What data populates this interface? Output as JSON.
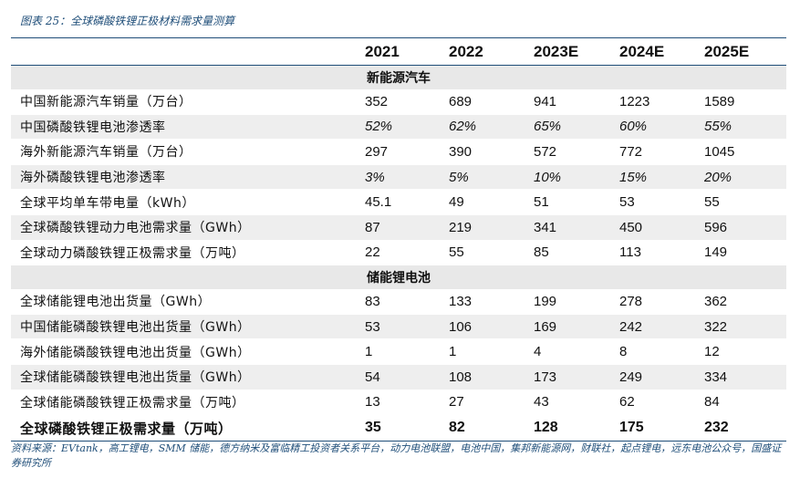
{
  "figure_title": "图表 25：全球磷酸铁锂正极材料需求量测算",
  "columns": [
    "",
    "2021",
    "2022",
    "2023E",
    "2024E",
    "2025E"
  ],
  "sections": [
    {
      "title": "新能源汽车",
      "rows": [
        {
          "label": "中国新能源汽车销量（万台）",
          "values": [
            "352",
            "689",
            "941",
            "1223",
            "1589"
          ],
          "italic": false
        },
        {
          "label": "中国磷酸铁锂电池渗透率",
          "values": [
            "52%",
            "62%",
            "65%",
            "60%",
            "55%"
          ],
          "italic": true
        },
        {
          "label": "海外新能源汽车销量（万台）",
          "values": [
            "297",
            "390",
            "572",
            "772",
            "1045"
          ],
          "italic": false
        },
        {
          "label": "海外磷酸铁锂电池渗透率",
          "values": [
            "3%",
            "5%",
            "10%",
            "15%",
            "20%"
          ],
          "italic": true
        },
        {
          "label": "全球平均单车带电量（kWh）",
          "values": [
            "45.1",
            "49",
            "51",
            "53",
            "55"
          ],
          "italic": false
        },
        {
          "label": "全球磷酸铁锂动力电池需求量（GWh）",
          "values": [
            "87",
            "219",
            "341",
            "450",
            "596"
          ],
          "italic": false
        },
        {
          "label": "全球动力磷酸铁锂正极需求量（万吨）",
          "values": [
            "22",
            "55",
            "85",
            "113",
            "149"
          ],
          "italic": false
        }
      ]
    },
    {
      "title": "储能锂电池",
      "rows": [
        {
          "label": "全球储能锂电池出货量（GWh）",
          "values": [
            "83",
            "133",
            "199",
            "278",
            "362"
          ],
          "italic": false
        },
        {
          "label": "中国储能磷酸铁锂电池出货量（GWh）",
          "values": [
            "53",
            "106",
            "169",
            "242",
            "322"
          ],
          "italic": false
        },
        {
          "label": "海外储能磷酸铁锂电池出货量（GWh）",
          "values": [
            "1",
            "1",
            "4",
            "8",
            "12"
          ],
          "italic": false
        },
        {
          "label": "全球储能磷酸铁锂电池出货量（GWh）",
          "values": [
            "54",
            "108",
            "173",
            "249",
            "334"
          ],
          "italic": false
        },
        {
          "label": "全球储能磷酸铁锂正极需求量（万吨）",
          "values": [
            "13",
            "27",
            "43",
            "62",
            "84"
          ],
          "italic": false
        }
      ]
    }
  ],
  "total": {
    "label": "全球磷酸铁锂正极需求量（万吨）",
    "values": [
      "35",
      "82",
      "128",
      "175",
      "232"
    ]
  },
  "source": "资料来源：EVtank，高工锂电，SMM 储能，德方纳米及富临精工投资者关系平台，动力电池联盟，电池中国，集邦新能源网，财联社，起点锂电，远东电池公众号，国盛证券研究所",
  "colors": {
    "accent": "#1f4e79",
    "section_bg": "#e8e8e8",
    "row_shade": "#eeeeee"
  }
}
